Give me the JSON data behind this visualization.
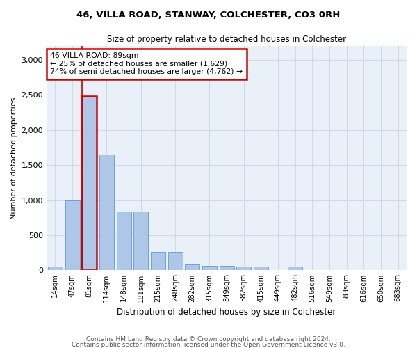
{
  "title1": "46, VILLA ROAD, STANWAY, COLCHESTER, CO3 0RH",
  "title2": "Size of property relative to detached houses in Colchester",
  "xlabel": "Distribution of detached houses by size in Colchester",
  "ylabel": "Number of detached properties",
  "categories": [
    "14sqm",
    "47sqm",
    "81sqm",
    "114sqm",
    "148sqm",
    "181sqm",
    "215sqm",
    "248sqm",
    "282sqm",
    "315sqm",
    "349sqm",
    "382sqm",
    "415sqm",
    "449sqm",
    "482sqm",
    "516sqm",
    "549sqm",
    "583sqm",
    "616sqm",
    "650sqm",
    "683sqm"
  ],
  "values": [
    55,
    1000,
    2480,
    1650,
    840,
    840,
    265,
    265,
    80,
    60,
    60,
    55,
    55,
    0,
    50,
    0,
    0,
    0,
    0,
    0,
    0
  ],
  "bar_color": "#aec6e8",
  "bar_edge_color": "#5b9bd5",
  "highlight_bar_index": 2,
  "highlight_color": "#cc0000",
  "annotation_text": "46 VILLA ROAD: 89sqm\n← 25% of detached houses are smaller (1,629)\n74% of semi-detached houses are larger (4,762) →",
  "ylim": [
    0,
    3200
  ],
  "yticks": [
    0,
    500,
    1000,
    1500,
    2000,
    2500,
    3000
  ],
  "grid_color": "#d0d8e8",
  "bg_color": "#eaf0f8",
  "footer1": "Contains HM Land Registry data © Crown copyright and database right 2024.",
  "footer2": "Contains public sector information licensed under the Open Government Licence v3.0."
}
